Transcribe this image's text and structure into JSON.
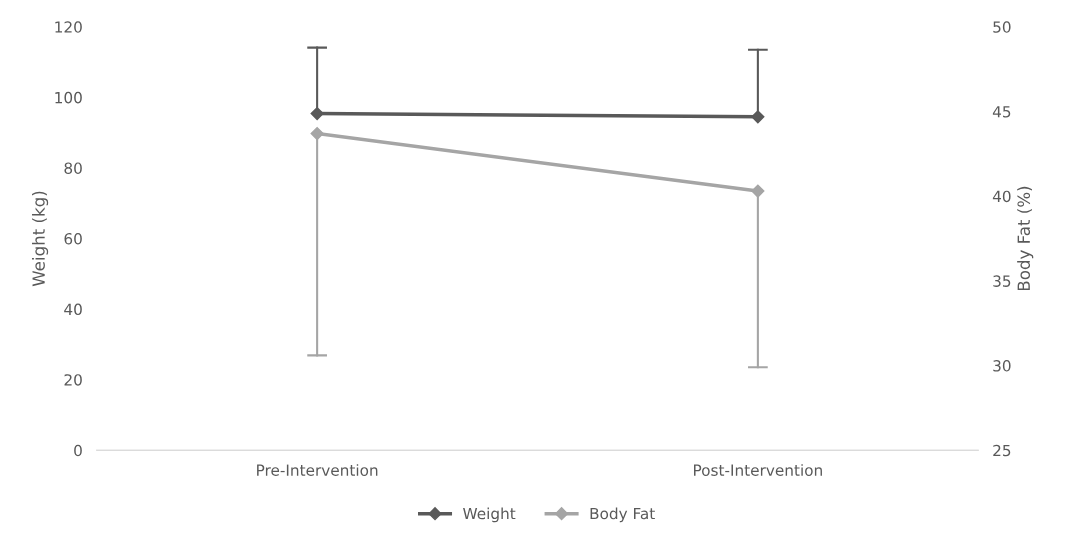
{
  "chart_data": {
    "type": "line",
    "categories": [
      "Pre-Intervention",
      "Post-Intervention"
    ],
    "ylabel": "Weight (kg)",
    "y2label": "Body Fat (%)",
    "ylim": [
      0,
      120
    ],
    "yticks": [
      0,
      20,
      40,
      60,
      80,
      100,
      120
    ],
    "y2lim": [
      25,
      50
    ],
    "y2ticks": [
      25,
      30,
      35,
      40,
      45,
      50
    ],
    "series": [
      {
        "name": "Weight",
        "color": "#595959",
        "values": [
          95.4,
          94.5
        ],
        "errors": [
          [
            95.4,
            114.1
          ],
          [
            94.5,
            113.5
          ]
        ]
      },
      {
        "name": "Body Fat",
        "color": "#a5a5a5",
        "axis": "y2",
        "values": [
          43.7,
          40.3
        ],
        "errors": [
          [
            30.6,
            43.7
          ],
          [
            29.9,
            40.3
          ]
        ]
      }
    ],
    "marker": "diamond",
    "line_style": "solid",
    "grid": false,
    "legend": "bottom"
  }
}
